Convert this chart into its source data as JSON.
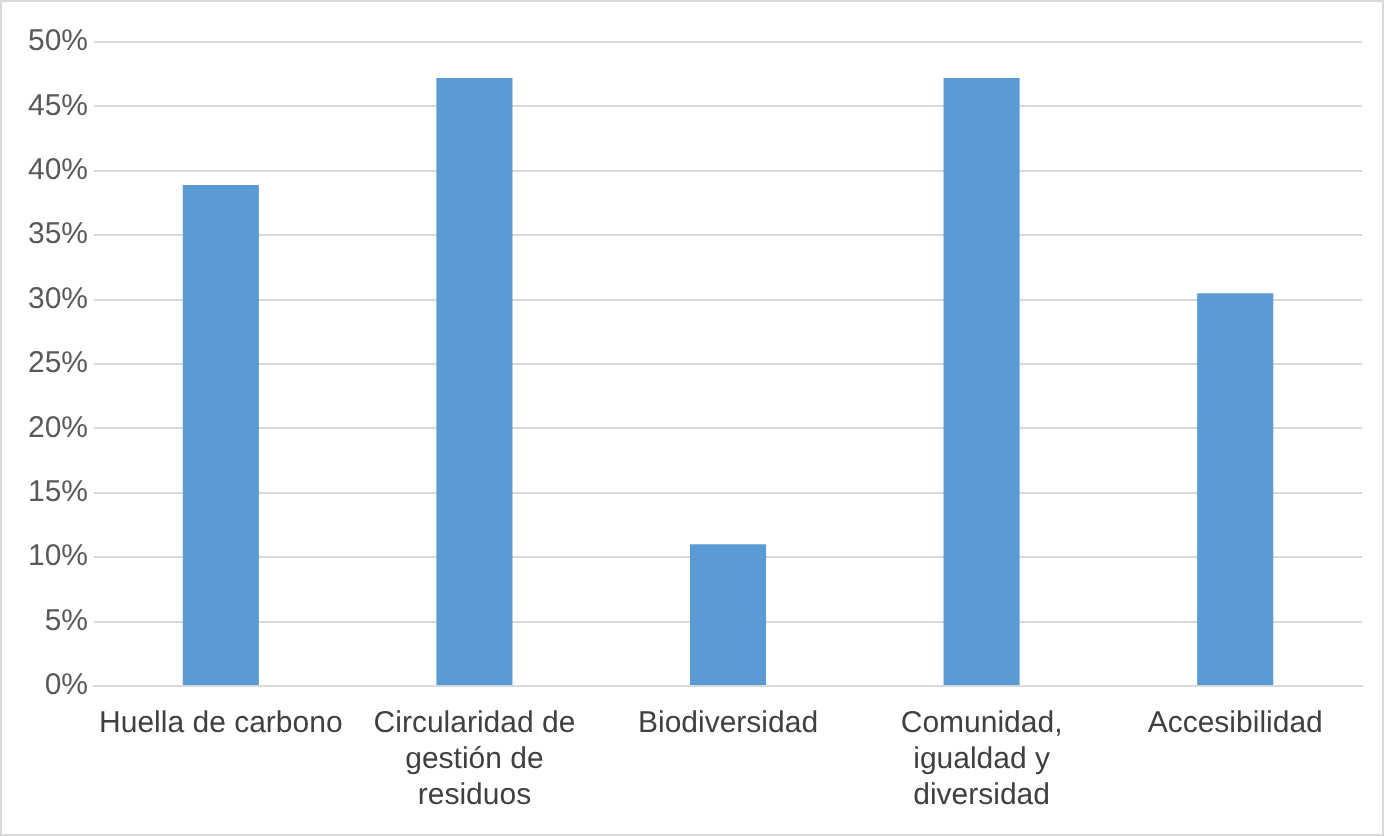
{
  "chart_data": {
    "type": "bar",
    "categories": [
      "Huella de carbono",
      "Circularidad de gestión de residuos",
      "Biodiversidad",
      "Comunidad, igualdad y diversidad",
      "Accesibilidad"
    ],
    "values": [
      38.9,
      47.2,
      11.0,
      47.2,
      30.5
    ],
    "color": "#5b9bd5",
    "ylim": [
      0,
      50
    ],
    "yticks": [
      {
        "value": 0,
        "label": "0%"
      },
      {
        "value": 5,
        "label": "5%"
      },
      {
        "value": 10,
        "label": "10%"
      },
      {
        "value": 15,
        "label": "15%"
      },
      {
        "value": 20,
        "label": "20%"
      },
      {
        "value": 25,
        "label": "25%"
      },
      {
        "value": 30,
        "label": "30%"
      },
      {
        "value": 35,
        "label": "35%"
      },
      {
        "value": 40,
        "label": "40%"
      },
      {
        "value": 45,
        "label": "45%"
      },
      {
        "value": 50,
        "label": "50%"
      }
    ],
    "grid": "y",
    "legend": false
  }
}
